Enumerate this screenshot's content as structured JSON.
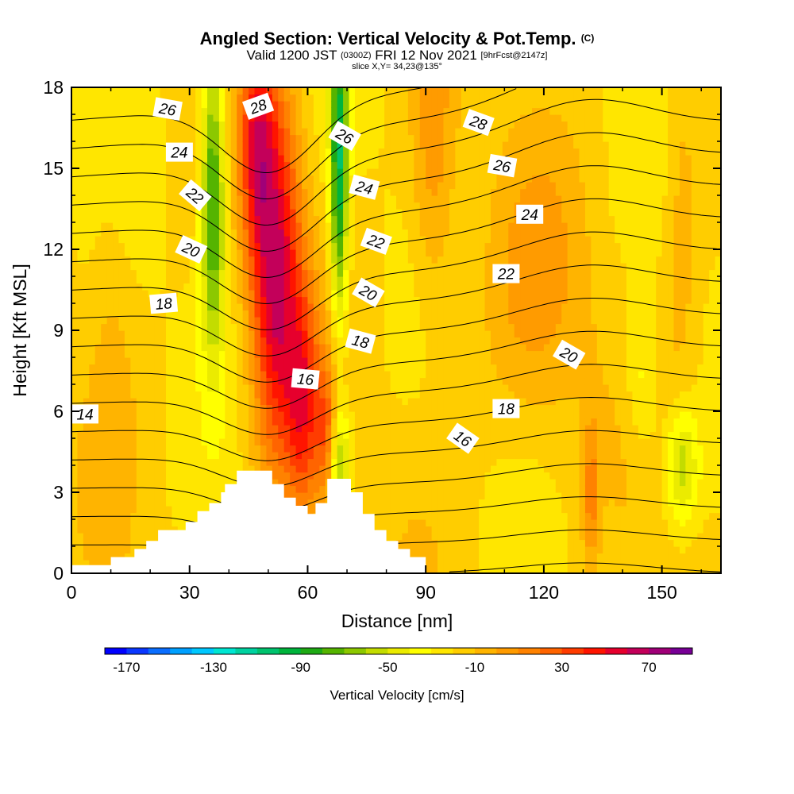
{
  "header": {
    "title": "Angled Section: Vertical Velocity & Pot.Temp.",
    "title_unit": "(C)",
    "valid_prefix": "Valid 1200 JST",
    "valid_utc": "(0300Z)",
    "valid_date": "FRI 12 Nov 2021",
    "forecast_tag": "[9hrFcst@2147z]",
    "slice": "slice X,Y= 34,23@135°"
  },
  "chart_data": {
    "type": "heatmap",
    "xlabel": "Distance [nm]",
    "ylabel": "Height [Kft MSL]",
    "xlim": [
      0,
      165
    ],
    "ylim": [
      0,
      18
    ],
    "x_ticks": [
      0,
      30,
      60,
      90,
      120,
      150
    ],
    "y_ticks": [
      0,
      3,
      6,
      9,
      12,
      15,
      18
    ],
    "colorbar": {
      "label": "Vertical Velocity [cm/s]",
      "min": -180,
      "max": 90,
      "step": 10,
      "tick_labels": [
        -170,
        -130,
        -90,
        -50,
        -10,
        30,
        70
      ],
      "colors": [
        "#0000ff",
        "#0a37ff",
        "#0a6eff",
        "#00a0ff",
        "#00c8ff",
        "#00e6d2",
        "#00d2a0",
        "#00c36e",
        "#00b43c",
        "#1eaa14",
        "#55b400",
        "#8cc800",
        "#c3dc00",
        "#ebeb00",
        "#ffff00",
        "#ffe600",
        "#ffcd00",
        "#ffb400",
        "#ff9b00",
        "#ff8200",
        "#ff6400",
        "#ff3c00",
        "#ff1400",
        "#e6002d",
        "#c3005a",
        "#a00078",
        "#780096"
      ]
    },
    "theta_contours": {
      "unit": "C",
      "levels": [
        13,
        14,
        15,
        16,
        17,
        18,
        19,
        20,
        21,
        22,
        23,
        24,
        25,
        26,
        27,
        28,
        29
      ],
      "labels": [
        {
          "text": "14",
          "x": 1,
          "y": 5.9,
          "angle": 0
        },
        {
          "text": "16",
          "x": 57,
          "y": 7.2,
          "angle": 5
        },
        {
          "text": "16",
          "x": 97,
          "y": 5.0,
          "angle": 35
        },
        {
          "text": "18",
          "x": 21,
          "y": 10.0,
          "angle": -5
        },
        {
          "text": "18",
          "x": 71,
          "y": 8.6,
          "angle": 15
        },
        {
          "text": "18",
          "x": 108,
          "y": 6.1,
          "angle": 0
        },
        {
          "text": "20",
          "x": 28,
          "y": 12.0,
          "angle": 25
        },
        {
          "text": "20",
          "x": 73,
          "y": 10.4,
          "angle": 30
        },
        {
          "text": "20",
          "x": 124,
          "y": 8.1,
          "angle": 30
        },
        {
          "text": "22",
          "x": 29,
          "y": 14.0,
          "angle": 40
        },
        {
          "text": "22",
          "x": 75,
          "y": 12.3,
          "angle": 20
        },
        {
          "text": "22",
          "x": 108,
          "y": 11.1,
          "angle": 0
        },
        {
          "text": "24",
          "x": 25,
          "y": 15.6,
          "angle": 0
        },
        {
          "text": "24",
          "x": 72,
          "y": 14.3,
          "angle": 15
        },
        {
          "text": "24",
          "x": 114,
          "y": 13.3,
          "angle": 0
        },
        {
          "text": "26",
          "x": 22,
          "y": 17.2,
          "angle": 10
        },
        {
          "text": "26",
          "x": 67,
          "y": 16.2,
          "angle": 30
        },
        {
          "text": "26",
          "x": 107,
          "y": 15.1,
          "angle": 10
        },
        {
          "text": "28",
          "x": 45,
          "y": 17.3,
          "angle": -20
        },
        {
          "text": "28",
          "x": 101,
          "y": 16.7,
          "angle": 20
        }
      ]
    },
    "velocity_features": [
      {
        "kind": "updraft",
        "x": 52,
        "x_spread": 4.5,
        "y": 11,
        "y_spread": 5,
        "peak_cms": 80
      },
      {
        "kind": "updraft",
        "x": 47,
        "x_spread": 3,
        "y": 16,
        "y_spread": 3,
        "peak_cms": 50
      },
      {
        "kind": "updraft",
        "x": 59,
        "x_spread": 3,
        "y": 6,
        "y_spread": 3,
        "peak_cms": 50
      },
      {
        "kind": "updraft",
        "x": 65,
        "x_spread": 2,
        "y": 5,
        "y_spread": 2,
        "peak_cms": 40
      },
      {
        "kind": "updraft",
        "x": 92,
        "x_spread": 4,
        "y": 15,
        "y_spread": 4,
        "peak_cms": 25
      },
      {
        "kind": "updraft",
        "x": 118,
        "x_spread": 10,
        "y": 10,
        "y_spread": 4,
        "peak_cms": 18
      },
      {
        "kind": "updraft",
        "x": 132,
        "x_spread": 1.5,
        "y": 3,
        "y_spread": 2,
        "peak_cms": 30
      },
      {
        "kind": "updraft",
        "x": 10,
        "x_spread": 4,
        "y": 8,
        "y_spread": 6,
        "peak_cms": 10
      },
      {
        "kind": "updraft",
        "x": 155,
        "x_spread": 3,
        "y": 14,
        "y_spread": 5,
        "peak_cms": 15
      },
      {
        "kind": "downdraft",
        "x": 36,
        "x_spread": 2.2,
        "y": 14,
        "y_spread": 4,
        "peak_cms": -70
      },
      {
        "kind": "downdraft",
        "x": 68,
        "x_spread": 1.6,
        "y": 15,
        "y_spread": 4,
        "peak_cms": -80
      },
      {
        "kind": "downdraft",
        "x": 68,
        "x_spread": 2,
        "y": 4,
        "y_spread": 1.5,
        "peak_cms": -50
      },
      {
        "kind": "downdraft",
        "x": 155,
        "x_spread": 3,
        "y": 4,
        "y_spread": 1.5,
        "peak_cms": -40
      },
      {
        "kind": "downdraft",
        "x": 145,
        "x_spread": 3,
        "y": 7,
        "y_spread": 2,
        "peak_cms": -20
      }
    ],
    "terrain": {
      "x": [
        0,
        10,
        10,
        13,
        13,
        16,
        16,
        19,
        19,
        22,
        22,
        29,
        29,
        32,
        32,
        35,
        35,
        38,
        38,
        39,
        39,
        42,
        42,
        45,
        45,
        48,
        48,
        51,
        51,
        54,
        54,
        57,
        57,
        60,
        60,
        62,
        62,
        65,
        65,
        71,
        71,
        74,
        74,
        77,
        77,
        80,
        80,
        83,
        83,
        86,
        86,
        90,
        90,
        165
      ],
      "y": [
        0.3,
        0.3,
        0.6,
        0.6,
        0.6,
        0.6,
        0.9,
        0.9,
        1.2,
        1.2,
        1.6,
        1.6,
        1.9,
        1.9,
        2.3,
        2.3,
        2.6,
        2.6,
        3.0,
        3.0,
        3.3,
        3.3,
        3.8,
        3.8,
        3.8,
        3.8,
        3.8,
        3.8,
        3.3,
        3.3,
        2.8,
        2.8,
        2.5,
        2.5,
        2.2,
        2.2,
        2.6,
        2.6,
        3.5,
        3.5,
        3.0,
        3.0,
        2.2,
        2.2,
        1.6,
        1.6,
        1.2,
        1.2,
        0.9,
        0.9,
        0.6,
        0.6,
        0.0,
        0.0
      ]
    }
  }
}
